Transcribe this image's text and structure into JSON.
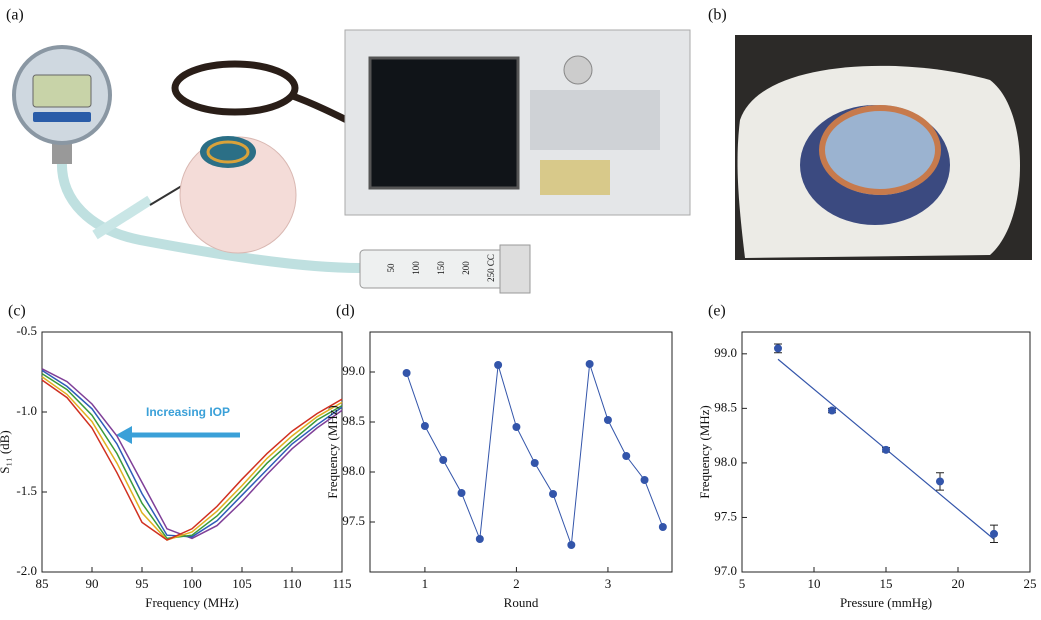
{
  "figure": {
    "a": "(a)",
    "b": "(b)",
    "syringe_marks": [
      "50",
      "100",
      "150",
      "200",
      "250 CC"
    ]
  },
  "chart_data": [
    {
      "type": "line",
      "label": "(c)",
      "x_label": "Frequency (MHz)",
      "y_label": "S₁₁ (dB)",
      "annotation": "Increasing IOP",
      "x": [
        85,
        87.5,
        90,
        92.5,
        95,
        97.5,
        100,
        102.5,
        105,
        107.5,
        110,
        112.5,
        115
      ],
      "series": [
        {
          "color": "#7f3f98",
          "values": [
            -0.73,
            -0.81,
            -0.95,
            -1.15,
            -1.44,
            -1.73,
            -1.79,
            -1.71,
            -1.56,
            -1.39,
            -1.23,
            -1.1,
            -0.99
          ]
        },
        {
          "color": "#2e5cb8",
          "values": [
            -0.74,
            -0.84,
            -0.98,
            -1.2,
            -1.51,
            -1.77,
            -1.78,
            -1.68,
            -1.52,
            -1.36,
            -1.2,
            -1.08,
            -0.97
          ]
        },
        {
          "color": "#3a9a3a",
          "values": [
            -0.76,
            -0.86,
            -1.02,
            -1.26,
            -1.57,
            -1.79,
            -1.77,
            -1.65,
            -1.49,
            -1.32,
            -1.18,
            -1.05,
            -0.96
          ]
        },
        {
          "color": "#e0b020",
          "values": [
            -0.78,
            -0.89,
            -1.06,
            -1.32,
            -1.63,
            -1.8,
            -1.75,
            -1.62,
            -1.46,
            -1.29,
            -1.15,
            -1.03,
            -0.94
          ]
        },
        {
          "color": "#d03020",
          "values": [
            -0.8,
            -0.91,
            -1.1,
            -1.38,
            -1.69,
            -1.8,
            -1.73,
            -1.59,
            -1.42,
            -1.26,
            -1.12,
            -1.01,
            -0.92
          ]
        }
      ],
      "xlim": [
        85,
        115
      ],
      "xticks": [
        85,
        90,
        95,
        100,
        105,
        110,
        115
      ],
      "ylim": [
        -2.0,
        -0.5
      ],
      "yticks": [
        {
          "value": -2.0,
          "label": "-2.0"
        },
        -1.5,
        {
          "value": -1.0,
          "label": "-1.0"
        },
        -0.5
      ]
    },
    {
      "type": "line",
      "label": "(d)",
      "x_label": "Round",
      "y_label": "Frequency (MHz)",
      "markers": true,
      "x": [
        0.8,
        1.0,
        1.2,
        1.4,
        1.6,
        1.8,
        2.0,
        2.2,
        2.4,
        2.6,
        2.8,
        3.0,
        3.2,
        3.4,
        3.6
      ],
      "series": [
        {
          "color": "#3355aa",
          "values": [
            98.99,
            98.46,
            98.12,
            97.79,
            97.33,
            99.07,
            98.45,
            98.09,
            97.78,
            97.27,
            99.08,
            98.52,
            98.16,
            97.92,
            97.45
          ]
        }
      ],
      "xlim": [
        0.4,
        3.7
      ],
      "xticks": [
        1,
        2,
        3
      ],
      "ylim": [
        97.0,
        99.4
      ],
      "yticks": [
        97.5,
        {
          "value": 98.0,
          "label": "98.0"
        },
        98.5,
        {
          "value": 99.0,
          "label": "99.0"
        }
      ]
    },
    {
      "type": "scatter",
      "label": "(e)",
      "x_label": "Pressure (mmHg)",
      "y_label": "Frequency (MHz)",
      "color": "#3355aa",
      "x": [
        7.5,
        11.25,
        15,
        18.75,
        22.5
      ],
      "values": [
        99.05,
        98.48,
        98.12,
        97.83,
        97.35
      ],
      "errors": [
        0.04,
        0.02,
        0.02,
        0.08,
        0.08
      ],
      "fit": {
        "x": [
          7.5,
          22.5
        ],
        "values": [
          98.95,
          97.3
        ]
      },
      "xlim": [
        5,
        25
      ],
      "xticks": [
        5,
        10,
        15,
        20,
        25
      ],
      "ylim": [
        97.0,
        99.2
      ],
      "yticks": [
        {
          "value": 97.0,
          "label": "97.0"
        },
        97.5,
        {
          "value": 98.0,
          "label": "98.0"
        },
        98.5,
        {
          "value": 99.0,
          "label": "99.0"
        }
      ]
    }
  ]
}
